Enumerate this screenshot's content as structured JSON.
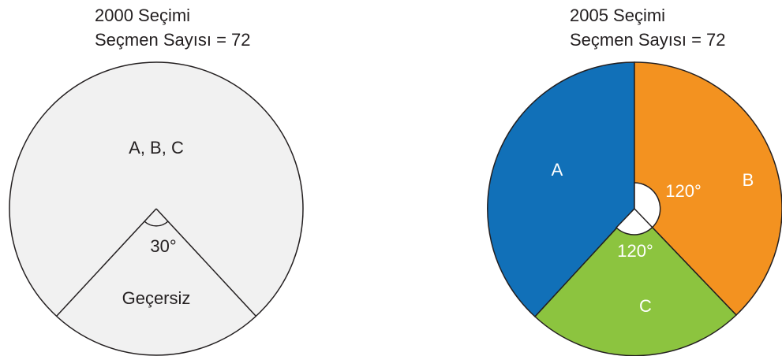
{
  "figures": [
    {
      "title": "2000 Seçimi",
      "subtitle": "Seçmen Sayısı = 72",
      "labels": [
        "A, B, C",
        "30°",
        "Geçersiz"
      ]
    },
    {
      "title": "2005 Seçimi",
      "subtitle": "Seçmen Sayısı = 72",
      "labels": [
        "A",
        "B",
        "C",
        "120°",
        "120°"
      ]
    }
  ]
}
